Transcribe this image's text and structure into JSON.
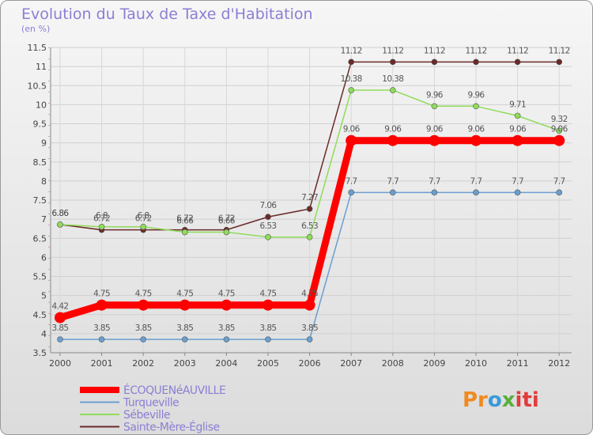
{
  "chart_data": {
    "type": "line",
    "title": "Evolution du Taux de Taxe d'Habitation",
    "ylabel": "(en %)",
    "xlabel": "",
    "ylim": [
      3.5,
      11.5
    ],
    "yticks": [
      "3.5",
      "4",
      "4.5",
      "5",
      "5.5",
      "6",
      "6.5",
      "7",
      "7.5",
      "8",
      "8.5",
      "9",
      "9.5",
      "10",
      "10.5",
      "11",
      "11.5"
    ],
    "categories": [
      "2000",
      "2001",
      "2002",
      "2003",
      "2004",
      "2005",
      "2006",
      "2007",
      "2008",
      "2009",
      "2010",
      "2011",
      "2012"
    ],
    "series": [
      {
        "name": "ÉCOQUENéAUVILLE",
        "color": "#ff0000",
        "values": [
          4.42,
          4.75,
          4.75,
          4.75,
          4.75,
          4.75,
          4.75,
          9.06,
          9.06,
          9.06,
          9.06,
          9.06,
          9.06
        ],
        "labels": [
          "4.42",
          "4.75",
          "4.75",
          "4.75",
          "4.75",
          "4.75",
          "4.75",
          "9.06",
          "9.06",
          "9.06",
          "9.06",
          "9.06",
          "9.06"
        ]
      },
      {
        "name": "Turqueville",
        "color": "#6a9fd0",
        "values": [
          3.85,
          3.85,
          3.85,
          3.85,
          3.85,
          3.85,
          3.85,
          7.7,
          7.7,
          7.7,
          7.7,
          7.7,
          7.7
        ],
        "labels": [
          "3.85",
          "3.85",
          "3.85",
          "3.85",
          "3.85",
          "3.85",
          "3.85",
          "7.7",
          "7.7",
          "7.7",
          "7.7",
          "7.7",
          "7.7"
        ]
      },
      {
        "name": "Sébeville",
        "color": "#8fdc5a",
        "values": [
          6.86,
          6.8,
          6.8,
          6.66,
          6.66,
          6.53,
          6.53,
          10.38,
          10.38,
          9.96,
          9.96,
          9.71,
          9.32
        ],
        "labels": [
          "6.86",
          "6.8",
          "6.8",
          "6.66",
          "6.66",
          "6.53",
          "6.53",
          "10.38",
          "10.38",
          "9.96",
          "9.96",
          "9.71",
          "9.32"
        ]
      },
      {
        "name": "Sainte-Mère-Église",
        "color": "#6b2a2a",
        "values": [
          6.86,
          6.72,
          6.72,
          6.72,
          6.72,
          7.06,
          7.27,
          11.12,
          11.12,
          11.12,
          11.12,
          11.12,
          11.12
        ],
        "labels": [
          "6.86",
          "6.72",
          "6.72",
          "6.72",
          "6.72",
          "7.06",
          "7.27",
          "11.12",
          "11.12",
          "11.12",
          "11.12",
          "11.12",
          "11.12"
        ]
      }
    ],
    "legend_position": "bottom-left"
  },
  "logo": {
    "text": "Proxiti",
    "parts": [
      "Pr",
      "o",
      "x",
      "iti"
    ]
  }
}
